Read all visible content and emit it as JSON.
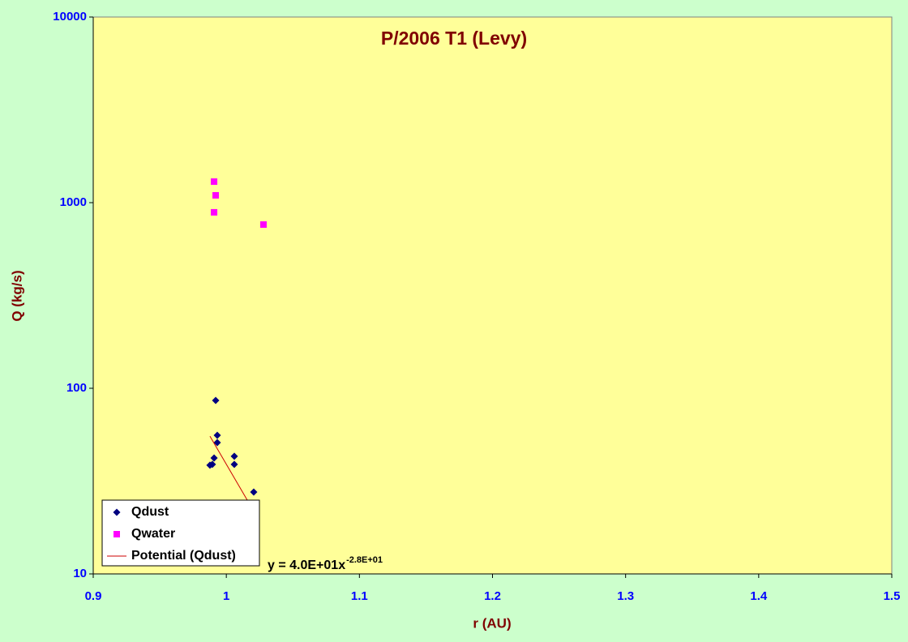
{
  "chart_data": {
    "type": "scatter",
    "title": "P/2006 T1 (Levy)",
    "x_label": "r (AU)",
    "y_label": "Q (kg/s)",
    "xlim": [
      0.9,
      1.5
    ],
    "xticks": [
      0.9,
      1,
      1.1,
      1.2,
      1.3,
      1.4,
      1.5
    ],
    "ylim": [
      10,
      10000
    ],
    "yticks": [
      10,
      100,
      1000,
      10000
    ],
    "y_scale": "log",
    "legend": "bottom-left",
    "series": [
      {
        "name": "Qdust",
        "color": "#000080",
        "marker": "diamond",
        "x": [
          0.9877,
          0.9895,
          0.9908,
          0.992,
          0.9932,
          0.9932,
          1.006,
          1.006,
          1.0206
        ],
        "values": [
          38.5,
          38.9,
          42.1,
          86,
          55.8,
          51,
          43,
          38.9,
          27.6
        ]
      },
      {
        "name": "Qwater",
        "color": "#ff00ff",
        "marker": "square",
        "x": [
          0.9908,
          0.992,
          0.9908,
          1.0279
        ],
        "values": [
          1298,
          1095,
          887,
          762
        ]
      },
      {
        "name": "Potential (Qdust)",
        "color": "#cc0000",
        "marker": "line",
        "x": [
          0.9877,
          1.0157
        ],
        "values": [
          55.2,
          25
        ]
      }
    ],
    "annotation": {
      "text": "y = 4.0E+01x",
      "superscript": "-2.8E+01"
    }
  }
}
